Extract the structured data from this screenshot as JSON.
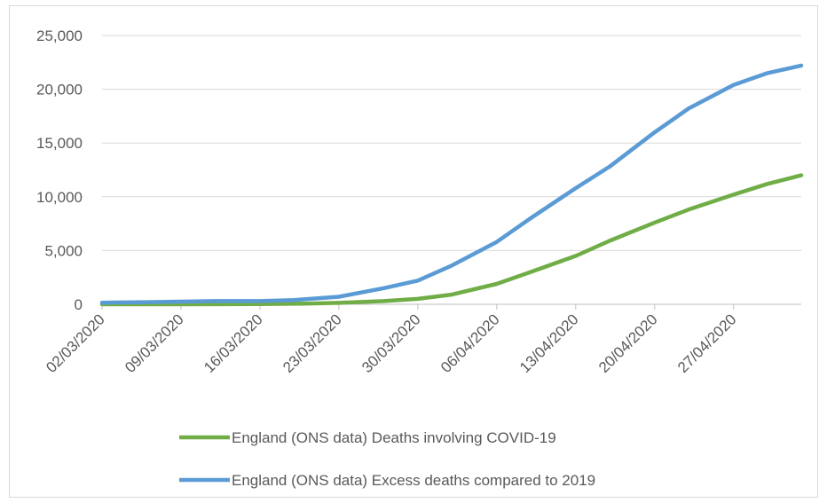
{
  "chart_data": {
    "type": "line",
    "title": "",
    "xlabel": "",
    "ylabel": "",
    "ylim": [
      0,
      25000
    ],
    "y_ticks": [
      0,
      5000,
      10000,
      15000,
      20000,
      25000
    ],
    "y_tick_labels": [
      "0",
      "5,000",
      "10,000",
      "15,000",
      "20,000",
      "25,000"
    ],
    "x_ticks": [
      "02/03/2020",
      "09/03/2020",
      "16/03/2020",
      "23/03/2020",
      "30/03/2020",
      "06/04/2020",
      "13/04/2020",
      "20/04/2020",
      "27/04/2020"
    ],
    "x_range": [
      "02/03/2020",
      "03/05/2020"
    ],
    "grid": "horizontal",
    "legend_position": "bottom",
    "series": [
      {
        "name": "England (ONS data) Deaths involving COVID-19",
        "color": "#70ad47",
        "points": [
          [
            "02/03/2020",
            0
          ],
          [
            "09/03/2020",
            0
          ],
          [
            "16/03/2020",
            20
          ],
          [
            "20/03/2020",
            60
          ],
          [
            "23/03/2020",
            130
          ],
          [
            "27/03/2020",
            300
          ],
          [
            "30/03/2020",
            500
          ],
          [
            "02/04/2020",
            900
          ],
          [
            "06/04/2020",
            1900
          ],
          [
            "09/04/2020",
            3000
          ],
          [
            "13/04/2020",
            4500
          ],
          [
            "16/04/2020",
            5900
          ],
          [
            "20/04/2020",
            7600
          ],
          [
            "23/04/2020",
            8800
          ],
          [
            "27/04/2020",
            10200
          ],
          [
            "30/04/2020",
            11200
          ],
          [
            "03/05/2020",
            12000
          ]
        ]
      },
      {
        "name": "England (ONS data) Excess deaths compared to 2019",
        "color": "#5b9bd5",
        "points": [
          [
            "02/03/2020",
            150
          ],
          [
            "06/03/2020",
            200
          ],
          [
            "09/03/2020",
            250
          ],
          [
            "12/03/2020",
            300
          ],
          [
            "16/03/2020",
            300
          ],
          [
            "19/03/2020",
            400
          ],
          [
            "23/03/2020",
            700
          ],
          [
            "27/03/2020",
            1500
          ],
          [
            "30/03/2020",
            2200
          ],
          [
            "02/04/2020",
            3600
          ],
          [
            "06/04/2020",
            5800
          ],
          [
            "09/04/2020",
            8000
          ],
          [
            "13/04/2020",
            10800
          ],
          [
            "16/04/2020",
            12800
          ],
          [
            "20/04/2020",
            16000
          ],
          [
            "23/04/2020",
            18200
          ],
          [
            "27/04/2020",
            20400
          ],
          [
            "30/04/2020",
            21500
          ],
          [
            "03/05/2020",
            22200
          ]
        ]
      }
    ]
  }
}
